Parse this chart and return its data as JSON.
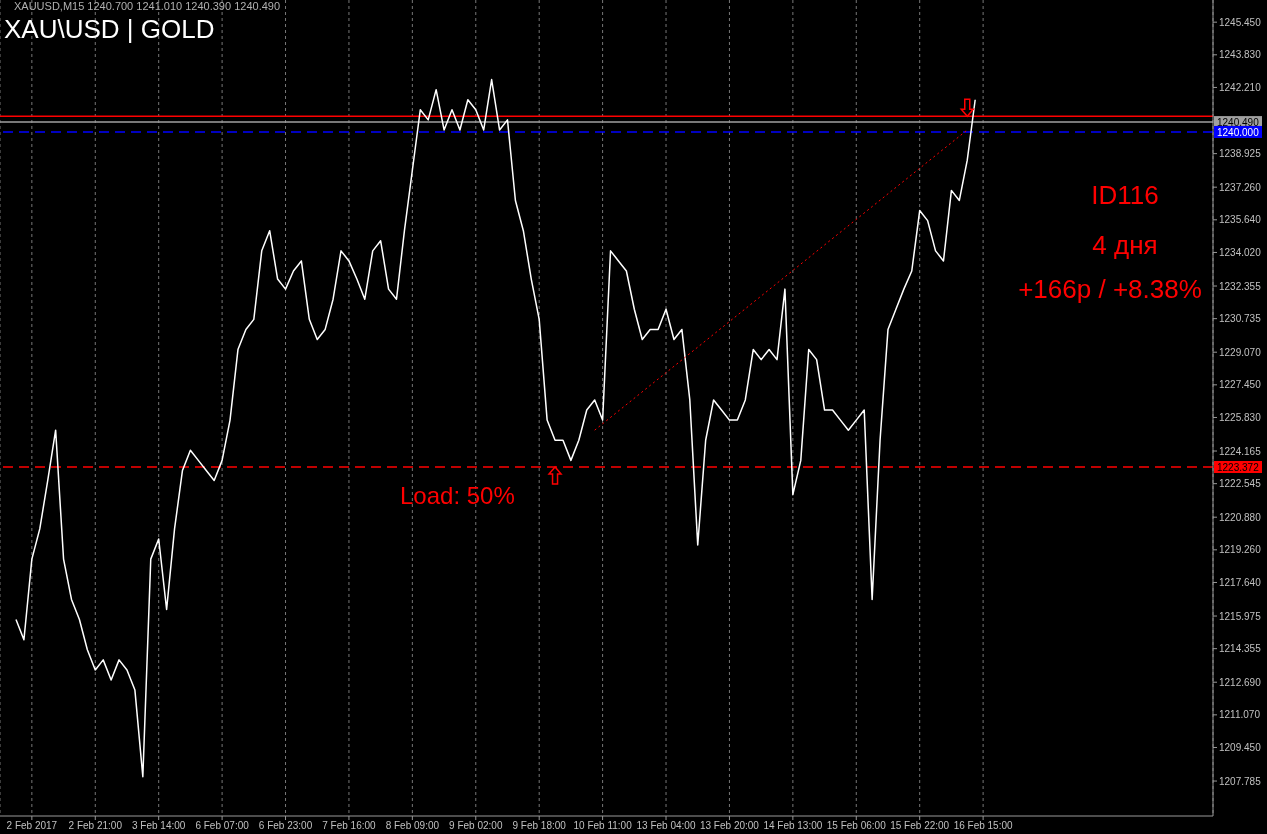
{
  "chart_data": {
    "type": "line",
    "title": "XAU\\USD | GOLD",
    "annotations": [
      "XAUUSD,M15  1240.700 1241.010 1240.390 1240.490",
      "ID116",
      "4 дня",
      "+166р / +8.38%",
      "Load: 50%"
    ],
    "categories": [
      null,
      null,
      "2 Feb 2017",
      null,
      null,
      null,
      null,
      null,
      null,
      null,
      "2 Feb 21:00",
      null,
      null,
      null,
      null,
      null,
      null,
      null,
      "3 Feb 14:00",
      null,
      null,
      null,
      null,
      null,
      null,
      null,
      "6 Feb 07:00",
      null,
      null,
      null,
      null,
      null,
      null,
      null,
      "6 Feb 23:00",
      null,
      null,
      null,
      null,
      null,
      null,
      null,
      "7 Feb 16:00",
      null,
      null,
      null,
      null,
      null,
      null,
      null,
      "8 Feb 09:00",
      null,
      null,
      null,
      null,
      null,
      null,
      null,
      "9 Feb 02:00",
      null,
      null,
      null,
      null,
      null,
      null,
      null,
      "9 Feb 18:00",
      null,
      null,
      null,
      null,
      null,
      null,
      null,
      "10 Feb 11:00",
      null,
      null,
      null,
      null,
      null,
      null,
      null,
      "13 Feb 04:00",
      null,
      null,
      null,
      null,
      null,
      null,
      null,
      "13 Feb 20:00",
      null,
      null,
      null,
      null,
      null,
      null,
      null,
      "14 Feb 13:00",
      null,
      null,
      null,
      null,
      null,
      null,
      null,
      "15 Feb 06:00",
      null,
      null,
      null,
      null,
      null,
      null,
      null,
      "15 Feb 22:00",
      null,
      null,
      null,
      null,
      null,
      null,
      null,
      "16 Feb 15:00",
      null,
      null,
      null,
      null,
      null,
      null,
      null,
      null,
      null,
      null,
      null,
      null,
      null,
      null,
      null,
      null,
      null,
      null,
      null,
      null,
      null,
      null,
      null,
      null,
      null,
      null,
      null,
      null,
      null
    ],
    "series": [
      {
        "color": "#ffffff",
        "values": [
          1215.8,
          1214.8,
          1218.8,
          1220.3,
          1222.7,
          1225.2,
          1218.8,
          1216.8,
          1215.8,
          1214.3,
          1213.3,
          1213.8,
          1212.8,
          1213.8,
          1213.3,
          1212.3,
          1208.0,
          1218.8,
          1219.8,
          1216.3,
          1220.3,
          1223.2,
          1224.2,
          1223.7,
          1223.2,
          1222.7,
          1223.7,
          1225.7,
          1229.2,
          1230.2,
          1230.7,
          1234.1,
          1235.1,
          1232.7,
          1232.2,
          1233.1,
          1233.6,
          1230.7,
          1229.7,
          1230.2,
          1231.7,
          1234.1,
          1233.6,
          1232.7,
          1231.7,
          1234.1,
          1234.6,
          1232.2,
          1231.7,
          1235.1,
          1238.1,
          1241.1,
          1240.6,
          1242.1,
          1240.1,
          1241.1,
          1240.1,
          1241.6,
          1241.1,
          1240.1,
          1242.6,
          1240.1,
          1240.6,
          1236.6,
          1235.1,
          1232.7,
          1230.7,
          1225.7,
          1224.7,
          1224.7,
          1223.7,
          1224.7,
          1226.2,
          1226.7,
          1225.7,
          1234.1,
          1233.6,
          1233.1,
          1231.2,
          1229.7,
          1230.2,
          1230.2,
          1231.2,
          1229.7,
          1230.2,
          1226.7,
          1219.5,
          1224.7,
          1226.7,
          1226.2,
          1225.7,
          1225.7,
          1226.7,
          1229.2,
          1228.7,
          1229.2,
          1228.7,
          1232.2,
          1222.0,
          1223.7,
          1229.2,
          1228.7,
          1226.2,
          1226.2,
          1225.7,
          1225.2,
          1225.7,
          1226.2,
          1216.8,
          1224.7,
          1230.2,
          1231.2,
          1232.2,
          1233.1,
          1236.1,
          1235.6,
          1234.1,
          1233.6,
          1237.1,
          1236.6,
          1238.6,
          1241.6,
          null,
          null,
          null,
          null,
          null,
          null,
          null,
          null,
          null,
          null,
          null,
          null,
          null,
          null,
          null,
          null,
          null,
          null,
          null,
          null,
          null,
          null,
          null,
          null,
          null,
          null,
          null,
          null,
          null,
          null
        ]
      },
      {
        "color": "#ff0000",
        "line_style": "dotted",
        "values": [
          null,
          null,
          null,
          null,
          null,
          null,
          null,
          null,
          null,
          null,
          null,
          null,
          null,
          null,
          null,
          null,
          null,
          null,
          null,
          null,
          null,
          null,
          null,
          null,
          null,
          null,
          null,
          null,
          null,
          null,
          null,
          null,
          null,
          null,
          null,
          null,
          null,
          null,
          null,
          null,
          null,
          null,
          null,
          null,
          null,
          null,
          null,
          null,
          null,
          null,
          null,
          null,
          null,
          null,
          null,
          null,
          null,
          null,
          null,
          null,
          null,
          null,
          null,
          null,
          null,
          null,
          null,
          null,
          null,
          null,
          null,
          null,
          null,
          1225.2,
          null,
          null,
          null,
          null,
          null,
          null,
          null,
          null,
          null,
          null,
          null,
          null,
          null,
          null,
          null,
          null,
          null,
          null,
          null,
          null,
          null,
          null,
          null,
          null,
          null,
          null,
          null,
          null,
          null,
          null,
          null,
          null,
          null,
          null,
          null,
          null,
          null,
          null,
          null,
          null,
          null,
          null,
          null,
          null,
          null,
          null,
          1240.1,
          null,
          null,
          null,
          null,
          null,
          null,
          null,
          null,
          null,
          null,
          null,
          null,
          null,
          null,
          null,
          null,
          null,
          null,
          null,
          null,
          null,
          null,
          null,
          null,
          null,
          null,
          null,
          null,
          null,
          null,
          null
        ]
      }
    ],
    "ylim": [
      1206.05,
      1246.55
    ],
    "yticks": [
      1207.785,
      {
        "value": 1209.45,
        "label": "1209.450"
      },
      {
        "value": 1211.07,
        "label": "1211.070"
      },
      {
        "value": 1212.69,
        "label": "1212.690"
      },
      1214.355,
      1215.975,
      {
        "value": 1217.64,
        "label": "1217.640"
      },
      {
        "value": 1219.26,
        "label": "1219.260"
      },
      {
        "value": 1220.88,
        "label": "1220.880"
      },
      1222.545,
      1224.165,
      {
        "value": 1225.83,
        "label": "1225.830"
      },
      {
        "value": 1227.45,
        "label": "1227.450"
      },
      {
        "value": 1229.07,
        "label": "1229.070"
      },
      1230.735,
      1232.355,
      {
        "value": 1234.02,
        "label": "1234.020"
      },
      {
        "value": 1235.64,
        "label": "1235.640"
      },
      {
        "value": 1237.26,
        "label": "1237.260"
      },
      1238.925,
      {
        "value": 1242.21,
        "label": "1242.210"
      },
      {
        "value": 1243.83,
        "label": "1243.830"
      },
      {
        "value": 1245.45,
        "label": "1245.450"
      }
    ],
    "grid": "x",
    "ref_lines": [
      {
        "axis": "y",
        "value": 1240.78,
        "color": "#ff0000",
        "line_style": "solid"
      },
      {
        "axis": "y",
        "value": 1240.49,
        "label": "1240.490",
        "color": "#a0a0a0",
        "line_style": "solid"
      },
      {
        "axis": "y",
        "value": 1240.0,
        "label": "1240.000",
        "color": "#0000ff",
        "line_style": "dashed"
      },
      {
        "axis": "y",
        "value": 1223.372,
        "label": "1223.372",
        "color": "#ff0000",
        "line_style": "dashed"
      }
    ]
  }
}
